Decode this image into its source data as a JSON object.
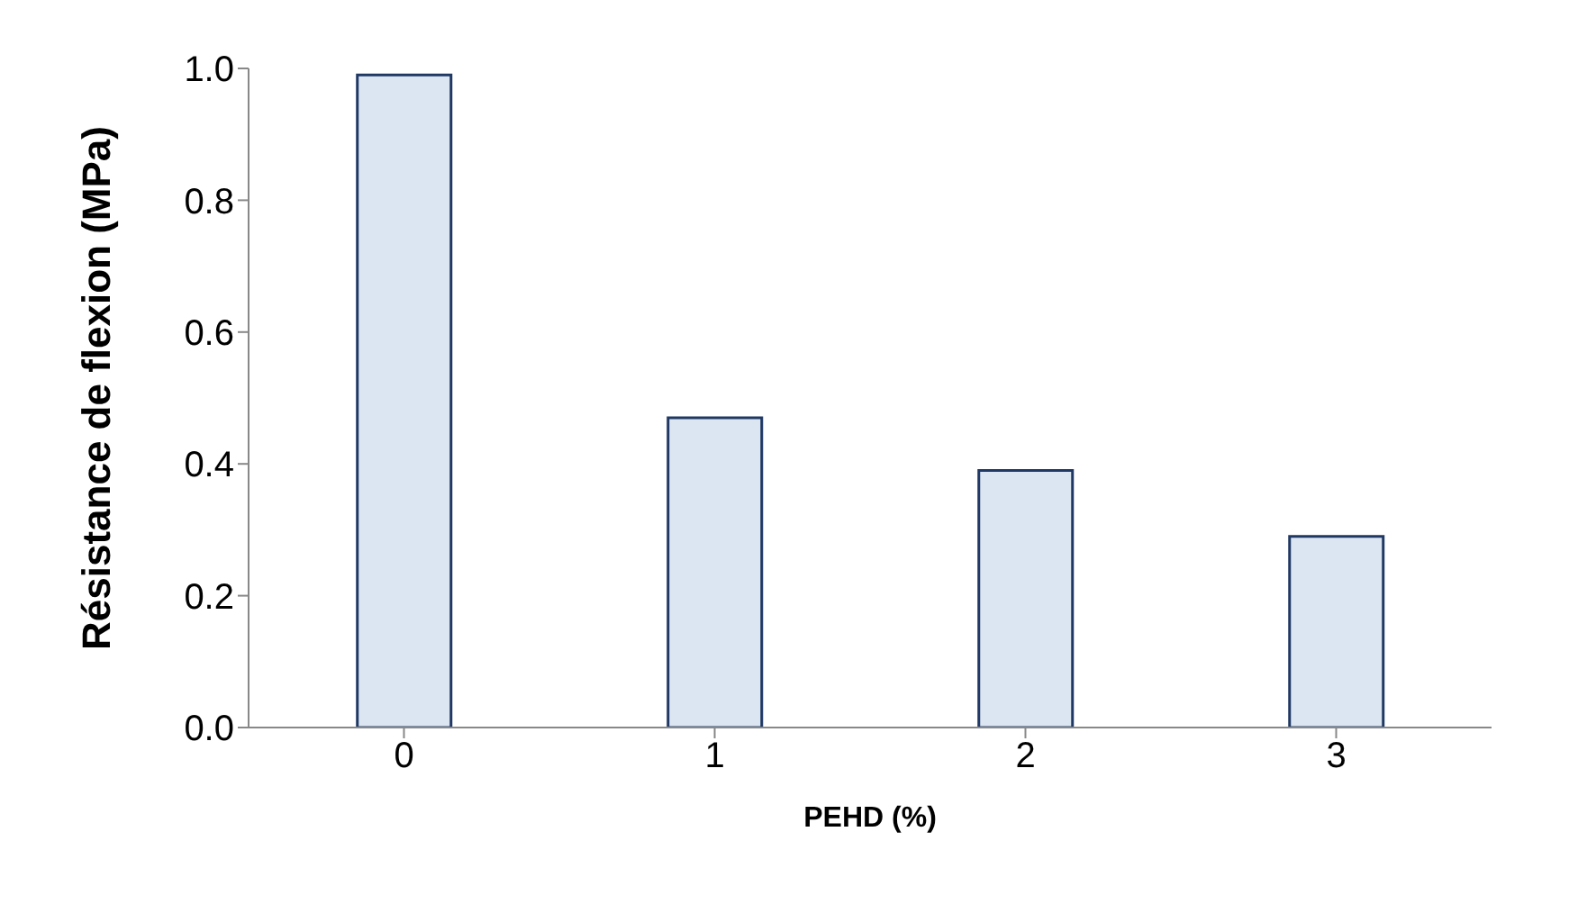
{
  "chart_data": {
    "type": "bar",
    "categories": [
      "0",
      "1",
      "2",
      "3"
    ],
    "values": [
      0.99,
      0.47,
      0.39,
      0.29
    ],
    "color": "#dce6f2",
    "xlabel": "PEHD (%)",
    "ylabel": "Résistance de flexion (MPa)",
    "ylim": [
      0,
      1
    ],
    "yticks": [
      {
        "value": 0,
        "label": "0.0"
      },
      {
        "value": 0.2,
        "label": "0.2"
      },
      {
        "value": 0.4,
        "label": "0.4"
      },
      {
        "value": 0.6,
        "label": "0.6"
      },
      {
        "value": 0.8,
        "label": "0.8"
      },
      {
        "value": 1,
        "label": "1.0"
      }
    ],
    "grid": false
  }
}
